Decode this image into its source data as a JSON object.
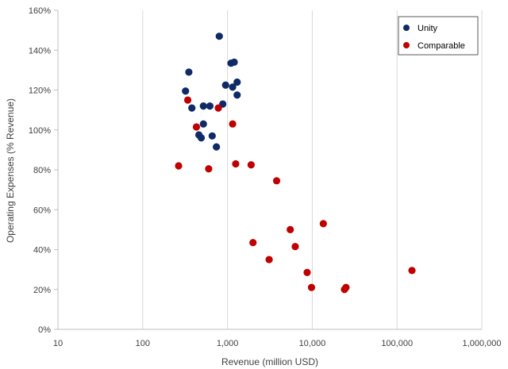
{
  "chart_data": {
    "type": "scatter",
    "title": "",
    "xlabel": "Revenue (million USD)",
    "ylabel": "Operating Expenses (% Revenue)",
    "x_scale": "log",
    "xlim": [
      10,
      1000000
    ],
    "ylim": [
      0,
      160
    ],
    "x_ticks": [
      10,
      100,
      1000,
      10000,
      100000,
      1000000
    ],
    "x_tick_labels": [
      "10",
      "100",
      "1,000",
      "10,000",
      "100,000",
      "1,000,000"
    ],
    "y_ticks": [
      0,
      20,
      40,
      60,
      80,
      100,
      120,
      140,
      160
    ],
    "y_tick_labels": [
      "0%",
      "20%",
      "40%",
      "60%",
      "80%",
      "100%",
      "120%",
      "140%",
      "160%"
    ],
    "grid": "vertical",
    "legend_position": "top-right",
    "series": [
      {
        "name": "Unity",
        "color": "#0f2b67",
        "points": [
          {
            "x": 800,
            "y": 147
          },
          {
            "x": 1100,
            "y": 133.5
          },
          {
            "x": 1200,
            "y": 134
          },
          {
            "x": 350,
            "y": 129
          },
          {
            "x": 320,
            "y": 119.5
          },
          {
            "x": 950,
            "y": 122.5
          },
          {
            "x": 1300,
            "y": 124
          },
          {
            "x": 1150,
            "y": 121.5
          },
          {
            "x": 1300,
            "y": 117.5
          },
          {
            "x": 520,
            "y": 112
          },
          {
            "x": 620,
            "y": 112
          },
          {
            "x": 880,
            "y": 113
          },
          {
            "x": 380,
            "y": 111
          },
          {
            "x": 520,
            "y": 103
          },
          {
            "x": 460,
            "y": 97.5
          },
          {
            "x": 490,
            "y": 96
          },
          {
            "x": 660,
            "y": 97
          },
          {
            "x": 740,
            "y": 91.5
          }
        ]
      },
      {
        "name": "Comparable",
        "color": "#c00000",
        "points": [
          {
            "x": 340,
            "y": 115
          },
          {
            "x": 780,
            "y": 111
          },
          {
            "x": 430,
            "y": 101.5
          },
          {
            "x": 1150,
            "y": 103
          },
          {
            "x": 265,
            "y": 82
          },
          {
            "x": 600,
            "y": 80.5
          },
          {
            "x": 1250,
            "y": 83
          },
          {
            "x": 1900,
            "y": 82.5
          },
          {
            "x": 3800,
            "y": 74.5
          },
          {
            "x": 13500,
            "y": 53
          },
          {
            "x": 5500,
            "y": 50
          },
          {
            "x": 2000,
            "y": 43.5
          },
          {
            "x": 6300,
            "y": 41.5
          },
          {
            "x": 3100,
            "y": 35
          },
          {
            "x": 8700,
            "y": 28.5
          },
          {
            "x": 150000,
            "y": 29.5
          },
          {
            "x": 9800,
            "y": 21
          },
          {
            "x": 25000,
            "y": 21
          },
          {
            "x": 24000,
            "y": 20
          }
        ]
      }
    ]
  }
}
